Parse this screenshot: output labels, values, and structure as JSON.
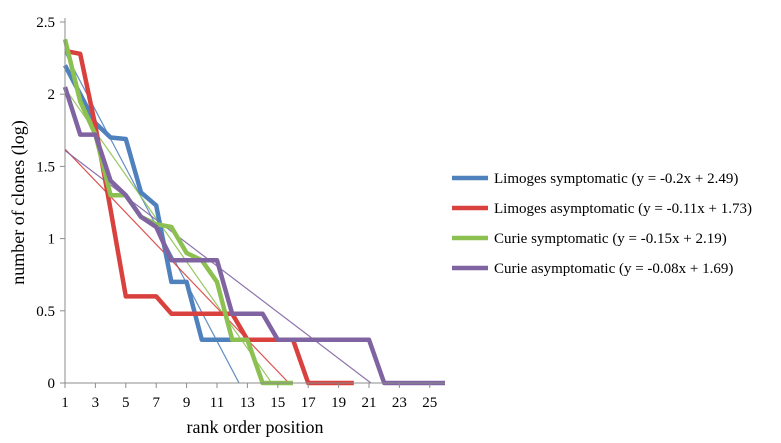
{
  "chart_data": {
    "type": "line",
    "title": "",
    "xlabel": "rank order position",
    "ylabel": "number of clones (log)",
    "xlim": [
      1,
      26
    ],
    "ylim": [
      0,
      2.5
    ],
    "xticks": [
      1,
      3,
      5,
      7,
      9,
      11,
      13,
      15,
      17,
      19,
      21,
      23,
      25
    ],
    "xtick_labels": [
      "1",
      "3",
      "5",
      "7",
      "9",
      "11",
      "13",
      "15",
      "17",
      "19",
      "21",
      "23",
      "25"
    ],
    "yticks": [
      0,
      0.5,
      1,
      1.5,
      2,
      2.5
    ],
    "ytick_labels": [
      "0",
      "0.5",
      "1",
      "1.5",
      "2",
      "2.5"
    ],
    "grid": false,
    "legend_position": "right",
    "series": [
      {
        "name": "Limoges symptomatic (y = -0.2x + 2.49)",
        "color": "#4f81bd",
        "x": [
          1,
          2,
          3,
          4,
          5,
          6,
          7,
          8,
          9,
          10,
          11,
          12
        ],
        "values": [
          2.2,
          2.0,
          1.8,
          1.7,
          1.69,
          1.32,
          1.23,
          0.7,
          0.7,
          0.3,
          0.3,
          0.3
        ],
        "trend": {
          "slope": -0.2,
          "intercept": 2.49
        }
      },
      {
        "name": "Limoges asymptomatic (y = -0.11x + 1.73)",
        "color": "#d9413e",
        "x": [
          1,
          2,
          3,
          4,
          5,
          6,
          7,
          8,
          9,
          10,
          11,
          12,
          13,
          14,
          15,
          16,
          17,
          18,
          19,
          20
        ],
        "values": [
          2.3,
          2.28,
          1.78,
          1.2,
          0.6,
          0.6,
          0.6,
          0.48,
          0.48,
          0.48,
          0.48,
          0.48,
          0.3,
          0.3,
          0.3,
          0.3,
          0.0,
          0.0,
          0.0,
          0.0
        ],
        "trend": {
          "slope": -0.11,
          "intercept": 1.73
        }
      },
      {
        "name": "Curie symptomatic (y = -0.15x + 2.19)",
        "color": "#8cc152",
        "x": [
          1,
          2,
          3,
          4,
          5,
          6,
          7,
          8,
          9,
          10,
          11,
          12,
          13,
          14,
          15,
          16
        ],
        "values": [
          2.38,
          1.95,
          1.72,
          1.3,
          1.3,
          1.15,
          1.1,
          1.08,
          0.9,
          0.85,
          0.7,
          0.3,
          0.3,
          0.0,
          0.0,
          0.0
        ],
        "trend": {
          "slope": -0.15,
          "intercept": 2.19
        }
      },
      {
        "name": "Curie asymptomatic (y = -0.08x + 1.69)",
        "color": "#8064a2",
        "x": [
          1,
          2,
          3,
          4,
          5,
          6,
          7,
          8,
          9,
          10,
          11,
          12,
          13,
          14,
          15,
          16,
          17,
          18,
          19,
          20,
          21,
          22,
          23,
          24,
          25,
          26
        ],
        "values": [
          2.05,
          1.72,
          1.72,
          1.4,
          1.3,
          1.15,
          1.08,
          0.85,
          0.85,
          0.85,
          0.85,
          0.48,
          0.48,
          0.48,
          0.3,
          0.3,
          0.3,
          0.3,
          0.3,
          0.3,
          0.3,
          0.0,
          0.0,
          0.0,
          0.0,
          0.0
        ],
        "trend": {
          "slope": -0.08,
          "intercept": 1.69
        }
      }
    ]
  }
}
